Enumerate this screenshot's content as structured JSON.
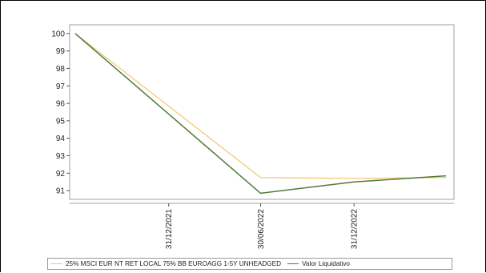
{
  "chart_data": {
    "type": "line",
    "title": "",
    "xlabel": "",
    "ylabel": "",
    "ylim": [
      90.5,
      100.5
    ],
    "yticks": [
      91,
      92,
      93,
      94,
      95,
      96,
      97,
      98,
      99,
      100
    ],
    "x": [
      "2021-06-30",
      "2022-06-30",
      "2022-12-31",
      "2023-06-30"
    ],
    "xticks": [
      "31/12/2021",
      "30/06/2022",
      "31/12/2022"
    ],
    "grid": false,
    "legend_position": "bottom",
    "series": [
      {
        "name": "25% MSCI EUR NT RET LOCAL 75% BB EUROAGG 1-5Y UNHEADGED",
        "color": "#f5c060",
        "values": [
          100,
          91.75,
          91.7,
          91.75
        ]
      },
      {
        "name": "Valor Liquidativo",
        "color": "#4f7a3c",
        "values": [
          100,
          90.85,
          91.5,
          91.85
        ]
      }
    ]
  }
}
